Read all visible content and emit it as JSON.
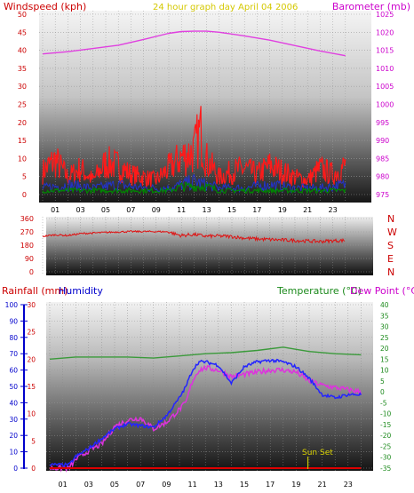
{
  "header": {
    "left_label": "Windspeed (kph)",
    "center_label": "24 hour graph day   April 04 2006",
    "right_label": "Barometer (mb)"
  },
  "humidity_panel": {
    "rain_label": "Rainfall (mm)",
    "humidity_label": "Humidity",
    "temp_label": "Temperature (°C)",
    "dew_label": "Dew Point (°C)",
    "sunset_label": "Sun Set"
  },
  "colors": {
    "wind": "#ff1a1a",
    "wind_avg": "#2233cc",
    "wind_low": "#008800",
    "baro": "#e040e0",
    "dir": "#e01010",
    "humidity": "#2424ff",
    "dew": "#dd33dd",
    "temp": "#3a9a3a",
    "axis_left": "#cc0000",
    "axis_right": "#cc00cc",
    "axis_green": "#1c8a1c",
    "axis_blue": "#0000cc",
    "sunset": "#c8c800"
  },
  "chart_data": [
    {
      "type": "line",
      "title": "24 hour graph day   April 04 2006",
      "panel": "wind_baro",
      "x_ticks": [
        "01",
        "03",
        "05",
        "07",
        "09",
        "11",
        "13",
        "15",
        "17",
        "19",
        "21",
        "23"
      ],
      "y_left": {
        "label": "Windspeed (kph)",
        "ylim": [
          0,
          50
        ],
        "ticks": [
          0,
          5,
          10,
          15,
          20,
          25,
          30,
          35,
          40,
          45,
          50
        ]
      },
      "y_right": {
        "label": "Barometer (mb)",
        "ylim": [
          975,
          1025
        ],
        "ticks": [
          975,
          980,
          985,
          990,
          995,
          1000,
          1005,
          1010,
          1015,
          1020,
          1025
        ]
      },
      "series": [
        {
          "name": "Barometer (mb)",
          "axis": "right",
          "x": [
            0,
            2,
            4,
            6,
            8,
            10,
            11,
            12,
            13,
            14,
            16,
            18,
            20,
            22,
            24
          ],
          "y": [
            1014,
            1014.6,
            1015.5,
            1016.4,
            1018,
            1019.7,
            1020.2,
            1020.3,
            1020.3,
            1020,
            1019,
            1017.8,
            1016.3,
            1014.8,
            1013.5
          ]
        },
        {
          "name": "Wind speed",
          "axis": "left",
          "x": [
            0,
            1,
            2,
            3,
            4,
            5,
            6,
            7,
            8,
            9,
            10,
            11,
            12,
            12.5,
            13,
            14,
            15,
            16,
            17,
            18,
            19,
            20,
            21,
            22,
            23,
            24
          ],
          "y": [
            8,
            12,
            6,
            9,
            5,
            11,
            10,
            7,
            6,
            5,
            9,
            13,
            15,
            22,
            12,
            6,
            8,
            9,
            7,
            10,
            8,
            6,
            5,
            9,
            7,
            10
          ]
        },
        {
          "name": "Wind average",
          "axis": "left",
          "x": [
            0,
            2,
            4,
            6,
            8,
            10,
            11,
            12,
            13,
            14,
            16,
            18,
            20,
            22,
            24
          ],
          "y": [
            2,
            3,
            2,
            3,
            2,
            2,
            3,
            4,
            3,
            2,
            2,
            3,
            2,
            2,
            3
          ]
        },
        {
          "name": "Wind low",
          "axis": "left",
          "x": [
            0,
            2,
            4,
            6,
            8,
            10,
            11,
            12,
            13,
            14,
            16,
            18,
            20,
            22,
            24
          ],
          "y": [
            1,
            1,
            1,
            1,
            1,
            1,
            2,
            2,
            2,
            1,
            1,
            1,
            1,
            1,
            1
          ]
        }
      ]
    },
    {
      "type": "line",
      "panel": "direction",
      "x_ticks": [
        "01",
        "03",
        "05",
        "07",
        "09",
        "11",
        "13",
        "15",
        "17",
        "19",
        "21",
        "23"
      ],
      "y": {
        "ylim": [
          0,
          360
        ],
        "ticks": [
          0,
          90,
          180,
          270,
          360
        ]
      },
      "compass": [
        "N",
        "W",
        "S",
        "E",
        "N"
      ],
      "series": [
        {
          "name": "Wind direction",
          "x": [
            0,
            1,
            2,
            3,
            4,
            5,
            6,
            7,
            8,
            9,
            10,
            10.5,
            11,
            12,
            13,
            14,
            15,
            16,
            17,
            18,
            19,
            20,
            21,
            22,
            23,
            24
          ],
          "y": [
            240,
            250,
            245,
            258,
            262,
            266,
            270,
            272,
            272,
            272,
            270,
            255,
            245,
            252,
            240,
            242,
            238,
            228,
            222,
            218,
            215,
            212,
            208,
            205,
            210,
            212
          ]
        }
      ]
    },
    {
      "type": "line",
      "panel": "humidity_temp",
      "x_ticks": [
        "01",
        "03",
        "05",
        "07",
        "09",
        "11",
        "13",
        "15",
        "17",
        "19",
        "21",
        "23"
      ],
      "y_humidity": {
        "label": "Humidity",
        "ylim": [
          0,
          100
        ],
        "ticks": [
          0,
          10,
          20,
          30,
          40,
          50,
          60,
          70,
          80,
          90,
          100
        ]
      },
      "y_rain": {
        "label": "Rainfall (mm)",
        "ylim": [
          0,
          30
        ],
        "ticks": [
          0,
          5,
          10,
          15,
          20,
          25,
          30
        ]
      },
      "y_temp": {
        "label": "Temperature (°C)",
        "ylim": [
          -35,
          40
        ],
        "ticks": [
          40,
          35,
          30,
          25,
          20,
          15,
          10,
          5,
          0,
          -5,
          -10,
          -15,
          -20,
          -25,
          -30,
          -35
        ]
      },
      "series": [
        {
          "name": "Humidity",
          "axis": "humidity",
          "x": [
            0,
            1.5,
            2,
            3,
            4,
            5,
            6,
            7,
            8,
            9,
            10,
            10.5,
            11,
            11.5,
            12,
            13,
            14,
            15,
            16,
            17,
            18,
            19,
            20,
            21,
            22,
            23,
            24
          ],
          "y": [
            2,
            2,
            7,
            12,
            18,
            24,
            27,
            26,
            25,
            32,
            43,
            50,
            60,
            65,
            65,
            63,
            52,
            62,
            65,
            66,
            65,
            62,
            55,
            45,
            43,
            45,
            45
          ]
        },
        {
          "name": "Dew Point (°C)",
          "axis": "temp",
          "x": [
            0,
            1.5,
            2,
            3,
            4,
            5,
            6,
            7,
            8,
            9,
            10,
            10.5,
            11,
            11.5,
            12,
            13,
            14,
            15,
            16,
            17,
            18,
            19,
            20,
            21,
            22,
            23,
            24
          ],
          "y": [
            -35,
            -35,
            -31,
            -27,
            -24,
            -16,
            -13,
            -12,
            -17,
            -14,
            -8,
            -5,
            5,
            10,
            11,
            10,
            7,
            8,
            9,
            10,
            10,
            9,
            5,
            3,
            2,
            1,
            0
          ]
        },
        {
          "name": "Temperature (°C)",
          "axis": "temp",
          "x": [
            0,
            2,
            4,
            6,
            8,
            10,
            12,
            14,
            16,
            18,
            19,
            20,
            22,
            24
          ],
          "y": [
            15,
            16,
            16,
            16,
            15.5,
            16.5,
            17.5,
            18,
            19,
            20.5,
            19.5,
            18.5,
            17.5,
            17
          ]
        },
        {
          "name": "Rainfall (mm)",
          "axis": "rain",
          "x": [
            0,
            24
          ],
          "y": [
            0,
            0
          ]
        }
      ],
      "annotations": [
        {
          "text": "Sun Set",
          "x": 19.9
        }
      ]
    }
  ]
}
